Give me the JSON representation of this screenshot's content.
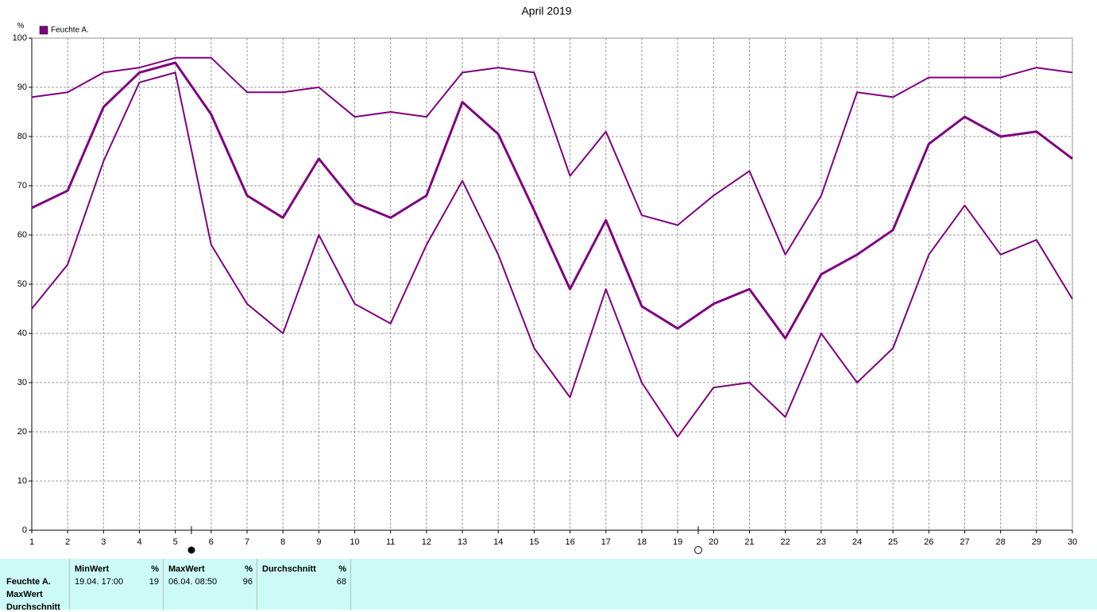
{
  "chart_data": {
    "type": "line",
    "title": "April 2019",
    "y_unit": "%",
    "x": [
      1,
      2,
      3,
      4,
      5,
      6,
      7,
      8,
      9,
      10,
      11,
      12,
      13,
      14,
      15,
      16,
      17,
      18,
      19,
      20,
      21,
      22,
      23,
      24,
      25,
      26,
      27,
      28,
      29,
      30
    ],
    "xlim": [
      1,
      30
    ],
    "xticks": [
      1,
      2,
      3,
      4,
      5,
      6,
      7,
      8,
      9,
      10,
      11,
      12,
      13,
      14,
      15,
      16,
      17,
      18,
      19,
      20,
      21,
      22,
      23,
      24,
      25,
      26,
      27,
      28,
      29,
      30
    ],
    "ylim": [
      0,
      100
    ],
    "yticks": [
      0,
      10,
      20,
      30,
      40,
      50,
      60,
      70,
      80,
      90,
      100
    ],
    "grid": true,
    "legend": "top-left",
    "series": [
      {
        "name": "Feuchte A.",
        "color": "#7f007f",
        "width": 3,
        "values": [
          65.5,
          69,
          86,
          93,
          95,
          84.5,
          68,
          63.5,
          75.5,
          66.5,
          63.5,
          68,
          87,
          80.5,
          65,
          49,
          63,
          45.5,
          41,
          46,
          49,
          39,
          52,
          56,
          61,
          78.5,
          84,
          80,
          81,
          75.5
        ]
      },
      {
        "color": "#7f007f",
        "width": 2,
        "values": [
          88,
          89,
          93,
          94,
          96,
          96,
          89,
          89,
          90,
          84,
          85,
          84,
          93,
          94,
          93,
          72,
          81,
          64,
          62,
          68,
          73,
          56,
          68,
          89,
          88,
          92,
          92,
          92,
          94,
          93
        ]
      },
      {
        "color": "#7f007f",
        "width": 2,
        "values": [
          45,
          54,
          75,
          91,
          93,
          58,
          46,
          40,
          60,
          46,
          42,
          58,
          71,
          56,
          37,
          27,
          49,
          30,
          19,
          29,
          30,
          23,
          40,
          30,
          37,
          56,
          66,
          56,
          59,
          47
        ]
      }
    ]
  },
  "table": {
    "row_labels": [
      "Feuchte A.",
      "MaxWert",
      "Durchschnitt"
    ],
    "columns": [
      {
        "header": "MinWert",
        "unit": "%",
        "time": "19.04.  17:00",
        "value": 19
      },
      {
        "header": "MaxWert",
        "unit": "%",
        "time": "06.04.  08:50",
        "value": 96
      },
      {
        "header": "Durchschnitt",
        "unit": "%",
        "value": 68
      }
    ]
  }
}
